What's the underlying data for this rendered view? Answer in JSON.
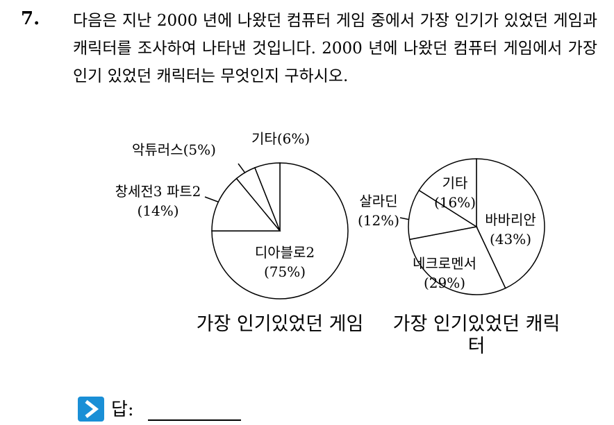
{
  "problem": {
    "number": "7.",
    "text": "다음은 지난 2000 년에 나왔던 컴퓨터 게임 중에서 가장 인기가 있었던 게임과 캐릭터를 조사하여 나타낸 것입니다. 2000 년에 나왔던 컴퓨터 게임에서 가장 인기 있었던 캐릭터는 무엇인지 구하시오."
  },
  "chart_data": [
    {
      "type": "pie",
      "title": "가장 인기있었던 게임",
      "categories": [
        "디아블로2",
        "창세전3 파트2",
        "악튜러스",
        "기타"
      ],
      "values": [
        75,
        14,
        5,
        6
      ],
      "value_labels": [
        "(75%)",
        "(14%)",
        "(5%)",
        "(6%)"
      ]
    },
    {
      "type": "pie",
      "title": "가장 인기있었던 캐릭터",
      "categories": [
        "바바리안",
        "네크로멘서",
        "살라딘",
        "기타"
      ],
      "values": [
        43,
        29,
        12,
        16
      ],
      "value_labels": [
        "(43%)",
        "(29%)",
        "(12%)",
        "(16%)"
      ]
    }
  ],
  "answer": {
    "label": "답:"
  }
}
